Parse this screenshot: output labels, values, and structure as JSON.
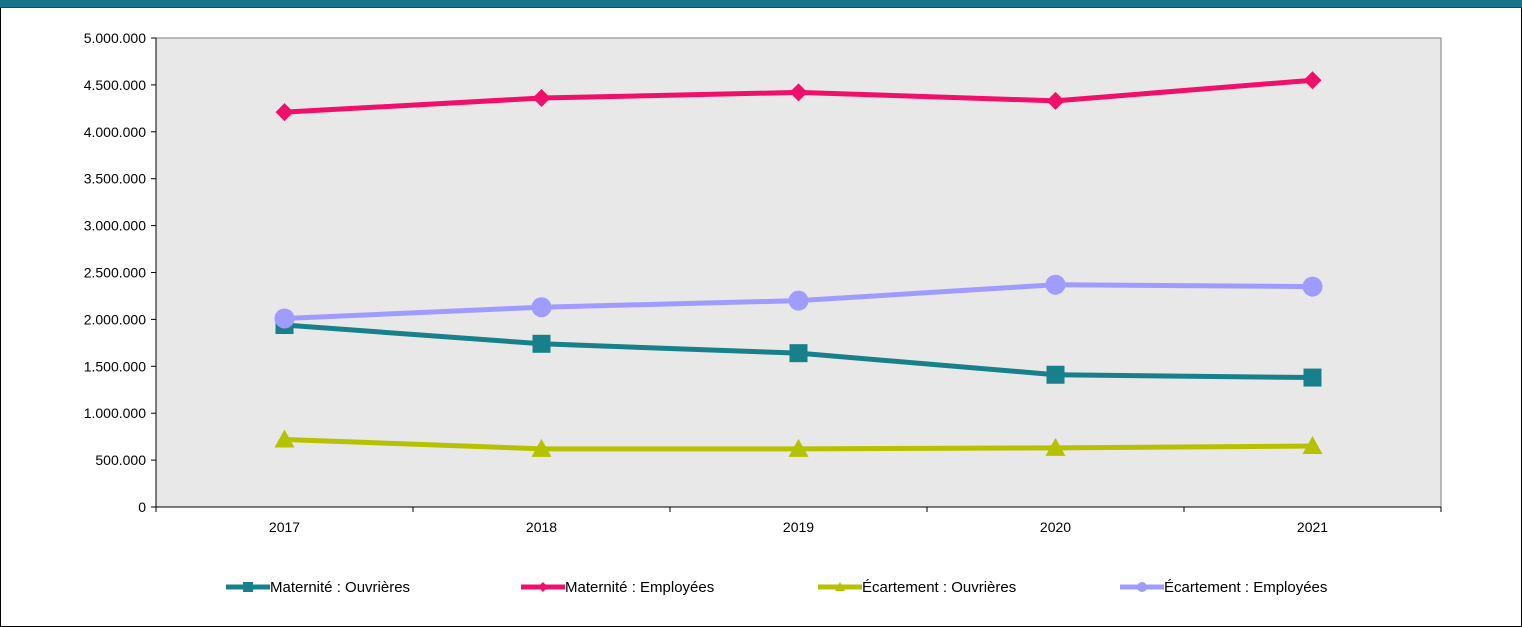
{
  "chart_data": {
    "type": "line",
    "title": "",
    "xlabel": "",
    "ylabel": "",
    "categories": [
      "2017",
      "2018",
      "2019",
      "2020",
      "2021"
    ],
    "ylim": [
      0,
      5000000
    ],
    "yticks": [
      0,
      500000,
      1000000,
      1500000,
      2000000,
      2500000,
      3000000,
      3500000,
      4000000,
      4500000,
      5000000
    ],
    "ytick_labels": [
      "0",
      "500.000",
      "1.000.000",
      "1.500.000",
      "2.000.000",
      "2.500.000",
      "3.000.000",
      "3.500.000",
      "4.000.000",
      "4.500.000",
      "5.000.000"
    ],
    "grid": false,
    "legend_position": "bottom",
    "plot_background": "#e8e8e8",
    "series": [
      {
        "name": "Maternité : Ouvrières",
        "color": "#17808a",
        "marker": "square",
        "values": [
          1940000,
          1740000,
          1640000,
          1410000,
          1380000
        ]
      },
      {
        "name": "Maternité : Employées",
        "color": "#f0106a",
        "marker": "diamond",
        "values": [
          4210000,
          4360000,
          4420000,
          4330000,
          4550000
        ]
      },
      {
        "name": "Écartement : Ouvrières",
        "color": "#b5c200",
        "marker": "triangle",
        "values": [
          720000,
          620000,
          620000,
          630000,
          650000
        ]
      },
      {
        "name": "Écartement : Employées",
        "color": "#a09cff",
        "marker": "circle",
        "values": [
          2010000,
          2130000,
          2200000,
          2370000,
          2350000
        ]
      }
    ]
  }
}
